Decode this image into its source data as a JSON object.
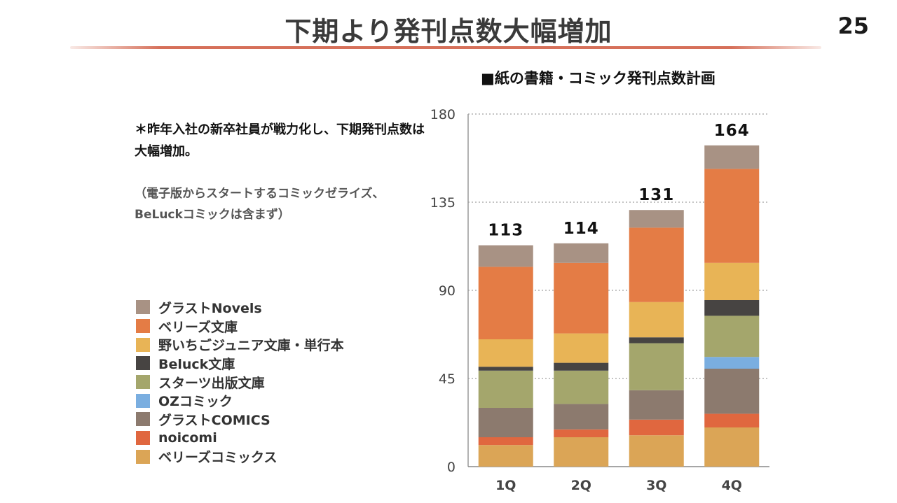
{
  "slide": {
    "title": "下期より発刊点数大幅増加",
    "page_number": "25",
    "note_main": "＊昨年入社の新卒社員が戦力化し、下期発刊点数は大幅増加。",
    "note_sub": "（電子版からスタートするコミックゼライズ、BeLuckコミックは含まず）"
  },
  "chart_data": {
    "type": "bar",
    "stacked": true,
    "title": "■紙の書籍・コミック発刊点数計画",
    "categories": [
      "1Q",
      "2Q",
      "3Q",
      "4Q"
    ],
    "totals": [
      113,
      114,
      131,
      164
    ],
    "ylim": [
      0,
      180
    ],
    "yticks": [
      0,
      45,
      90,
      135,
      180
    ],
    "grid": true,
    "gridlines": "dotted horizontal",
    "series": [
      {
        "name": "ベリーズコミックス",
        "color": "#dba556",
        "values": [
          11,
          15,
          16,
          20
        ]
      },
      {
        "name": "noicomi",
        "color": "#e0673f",
        "values": [
          4,
          4,
          8,
          7
        ]
      },
      {
        "name": "グラストCOMICS",
        "color": "#8c7a6e",
        "values": [
          15,
          13,
          15,
          23
        ]
      },
      {
        "name": "OZコミック",
        "color": "#7aaee0",
        "values": [
          0,
          0,
          0,
          6
        ]
      },
      {
        "name": "スターツ出版文庫",
        "color": "#a4a66c",
        "values": [
          19,
          17,
          24,
          21
        ]
      },
      {
        "name": "Beluck文庫",
        "color": "#474442",
        "values": [
          2,
          4,
          3,
          8
        ]
      },
      {
        "name": "野いちごジュニア文庫・単行本",
        "color": "#e8b456",
        "values": [
          14,
          15,
          18,
          19
        ]
      },
      {
        "name": "ベリーズ文庫",
        "color": "#e47c45",
        "values": [
          37,
          36,
          38,
          48
        ]
      },
      {
        "name": "グラストNovels",
        "color": "#a89284",
        "values": [
          11,
          10,
          9,
          12
        ]
      }
    ],
    "legend_order": [
      "グラストNovels",
      "ベリーズ文庫",
      "野いちごジュニア文庫・単行本",
      "Beluck文庫",
      "スターツ出版文庫",
      "OZコミック",
      "グラストCOMICS",
      "noicomi",
      "ベリーズコミックス"
    ]
  }
}
